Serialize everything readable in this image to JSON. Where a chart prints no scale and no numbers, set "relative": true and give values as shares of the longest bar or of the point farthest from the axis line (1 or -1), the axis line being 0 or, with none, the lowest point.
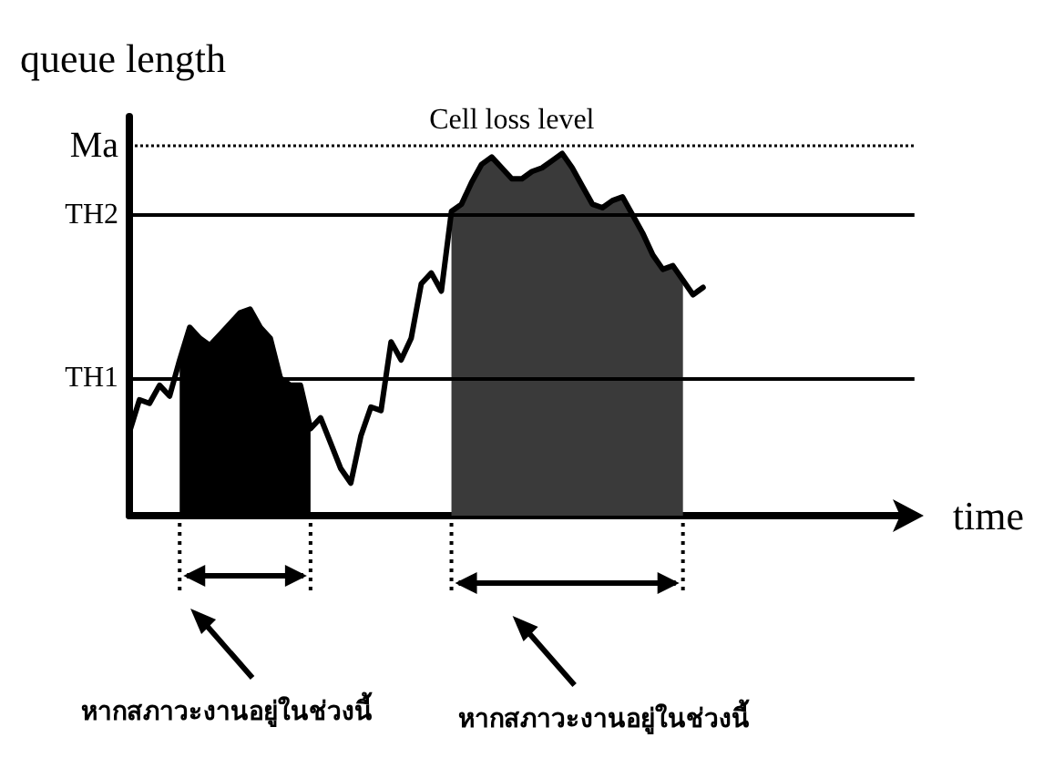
{
  "chart_data": {
    "type": "line",
    "relative": true,
    "ylabel": "queue length",
    "xlabel": "time",
    "grid": false,
    "categories": [
      null,
      null,
      null,
      null,
      null,
      null,
      null,
      null,
      null,
      null,
      null,
      null,
      null,
      null,
      null,
      null,
      null,
      null,
      null,
      null,
      null,
      null,
      null,
      null,
      null,
      null,
      null,
      null,
      null,
      null,
      null,
      null,
      null,
      null,
      null,
      null,
      null,
      null,
      null,
      null,
      null,
      null,
      null,
      null,
      null,
      null,
      null,
      null,
      null,
      null,
      null,
      null,
      null,
      null,
      null,
      null,
      null,
      null,
      null,
      null,
      null,
      null,
      null,
      null,
      null,
      null,
      null,
      null,
      null,
      null,
      null,
      null,
      null,
      null,
      null,
      null,
      null,
      null,
      null
    ],
    "series": [
      {
        "color": "#000000",
        "values": [
          0.23,
          0.32,
          0.31,
          0.36,
          0.33,
          0.43,
          0.52,
          0.49,
          0.47,
          0.5,
          0.53,
          0.56,
          0.57,
          0.52,
          0.49,
          0.38,
          0.36,
          0.36,
          0.24,
          0.27,
          0.2,
          0.13,
          0.09,
          0.22,
          0.3,
          0.29,
          0.48,
          0.43,
          0.49,
          0.64,
          0.67,
          0.62,
          0.84,
          0.86,
          0.92,
          0.97,
          0.99,
          0.96,
          0.93,
          0.93,
          0.95,
          0.96,
          0.98,
          1.0,
          0.96,
          0.91,
          0.86,
          0.85,
          0.87,
          0.88,
          0.83,
          0.78,
          0.72,
          0.68,
          0.69,
          0.65,
          0.61,
          0.63,
          null,
          null,
          null,
          null,
          null,
          null,
          null,
          null,
          null,
          null,
          null,
          null,
          null,
          null,
          null,
          null,
          null,
          null,
          null,
          null,
          null
        ]
      },
      {
        "type": "area",
        "color": "#000000",
        "values": [
          null,
          null,
          null,
          null,
          null,
          0.43,
          0.52,
          0.49,
          0.47,
          0.5,
          0.53,
          0.56,
          0.57,
          0.52,
          0.49,
          0.38,
          0.36,
          0.36,
          0.24,
          null,
          null,
          null,
          null,
          null,
          null,
          null,
          null,
          null,
          null,
          null,
          null,
          null,
          null,
          null,
          null,
          null,
          null,
          null,
          null,
          null,
          null,
          null,
          null,
          null,
          null,
          null,
          null,
          null,
          null,
          null,
          null,
          null,
          null,
          null,
          null,
          null,
          null,
          null,
          null,
          null,
          null,
          null,
          null,
          null,
          null,
          null,
          null,
          null,
          null,
          null,
          null,
          null,
          null,
          null,
          null,
          null,
          null,
          null,
          null
        ]
      },
      {
        "type": "area",
        "color": "#3a3a3a",
        "values": [
          null,
          null,
          null,
          null,
          null,
          null,
          null,
          null,
          null,
          null,
          null,
          null,
          null,
          null,
          null,
          null,
          null,
          null,
          null,
          null,
          null,
          null,
          null,
          null,
          null,
          null,
          null,
          null,
          null,
          null,
          null,
          null,
          0.84,
          0.86,
          0.92,
          0.97,
          0.99,
          0.96,
          0.93,
          0.93,
          0.95,
          0.96,
          0.98,
          1.0,
          0.96,
          0.91,
          0.86,
          0.85,
          0.87,
          0.88,
          0.83,
          0.78,
          0.72,
          0.68,
          0.69,
          0.65,
          null,
          null,
          null,
          null,
          null,
          null,
          null,
          null,
          null,
          null,
          null,
          null,
          null,
          null,
          null,
          null,
          null,
          null,
          null,
          null,
          null,
          null,
          null
        ]
      }
    ],
    "ref_lines": [
      {
        "axis": "y",
        "value": 0.38,
        "label": "TH1",
        "line_style": "solid"
      },
      {
        "axis": "y",
        "value": 0.83,
        "label": "TH2",
        "line_style": "solid"
      },
      {
        "axis": "y",
        "value": 1.02,
        "label": "Ma",
        "line_style": "dotted"
      }
    ],
    "annotations": [
      "Cell loss level",
      "หากสภาวะงานอยู่ในช่วงนี้",
      "หากสภาวะงานอยู่ในช่วงนี้"
    ]
  }
}
